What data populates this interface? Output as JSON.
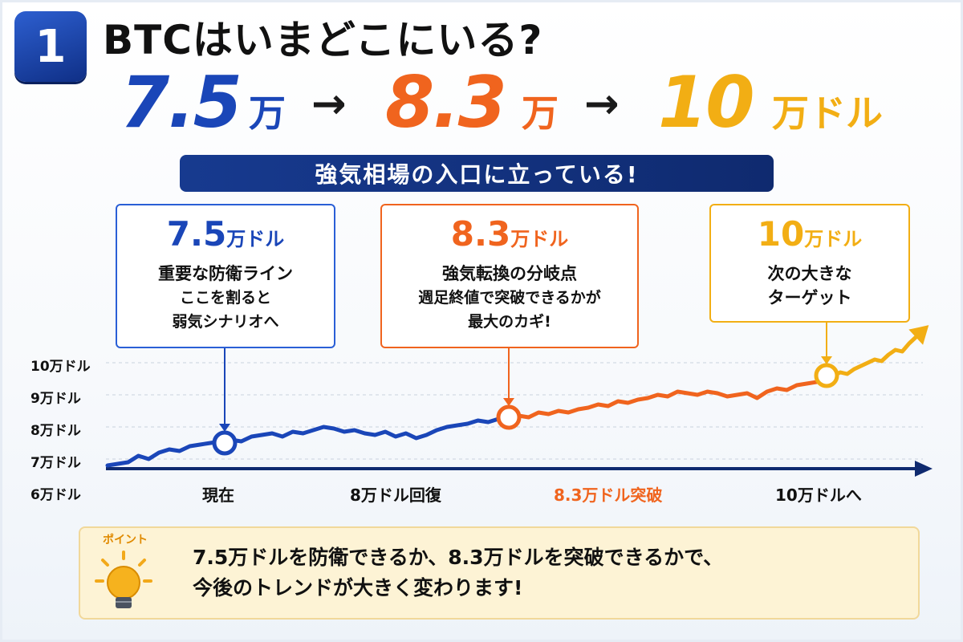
{
  "step_number": "1",
  "title": "BTCはいまどこにいる?",
  "headline": {
    "p1_num": "7.5",
    "p1_unit": "万",
    "p2_num": "8.3",
    "p2_unit": "万",
    "p3_num": "10",
    "p3_unit": "万ドル",
    "arrow": "→"
  },
  "banner": "強気相場の入口に立っている!",
  "callouts": [
    {
      "price": "7.5",
      "unit": "万ドル",
      "main": "重要な防衛ライン",
      "sub1": "ここを割ると",
      "sub2": "弱気シナリオへ"
    },
    {
      "price": "8.3",
      "unit": "万ドル",
      "main": "強気転換の分岐点",
      "sub1": "週足終値で突破できるかが",
      "sub2": "最大のカギ!"
    },
    {
      "price": "10",
      "unit": "万ドル",
      "main": "次の大きな",
      "sub1": "ターゲット",
      "sub2": ""
    }
  ],
  "colors": {
    "blue": "#1a46b8",
    "orange": "#f0641e",
    "gold": "#f2ae14",
    "navy": "#0f2a6f"
  },
  "chart_data": {
    "type": "line",
    "y_tick_labels": [
      "10万ドル",
      "9万ドル",
      "8万ドル",
      "7万ドル",
      "6万ドル"
    ],
    "y_ticks": [
      10,
      9,
      8,
      7,
      6
    ],
    "x_labels": [
      "現在",
      "8万ドル回復",
      "8.3万ドル突破",
      "10万ドルへ"
    ],
    "ylim": [
      6,
      10.5
    ],
    "grid": true,
    "series": [
      {
        "values": [
          6.8,
          6.85,
          6.9,
          7.1,
          7.0,
          7.2,
          7.3,
          7.25,
          7.4,
          7.45,
          7.5,
          7.55,
          7.6,
          7.55,
          7.7,
          7.75,
          7.8,
          7.7,
          7.85,
          7.8,
          7.9,
          8.0,
          7.95,
          7.85,
          7.9,
          7.8,
          7.75,
          7.85,
          7.7,
          7.8,
          7.65,
          7.75,
          7.9,
          8.0,
          8.05,
          8.1,
          8.2,
          8.15,
          8.25,
          8.3
        ],
        "color": "#1a46b8"
      },
      {
        "values": [
          8.3,
          8.35,
          8.3,
          8.45,
          8.4,
          8.5,
          8.45,
          8.55,
          8.6,
          8.7,
          8.65,
          8.8,
          8.75,
          8.85,
          8.9,
          9.0,
          8.95,
          9.1,
          9.05,
          9.0,
          9.1,
          9.05,
          8.95,
          9.0,
          9.05,
          8.9,
          9.1,
          9.2,
          9.15,
          9.3,
          9.35,
          9.4,
          9.5
        ],
        "color": "#f0641e"
      },
      {
        "values": [
          9.5,
          9.6,
          9.7,
          9.65,
          9.8,
          9.9,
          10.0,
          10.1,
          10.05,
          10.25,
          10.4,
          10.35,
          10.6,
          10.8,
          11.0
        ],
        "color": "#f2ae14"
      }
    ],
    "markers": [
      7.5,
      8.3,
      9.6
    ]
  },
  "point_label": "ポイント",
  "point_text_1": "7.5万ドルを防衛できるか、8.3万ドルを突破できるかで、",
  "point_text_2": "今後のトレンドが大きく変わります!"
}
